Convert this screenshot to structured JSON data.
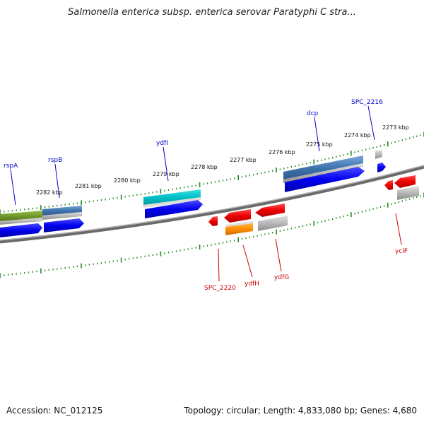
{
  "header": {
    "title": "Salmonella enterica subsp. enterica serovar Paratyphi C stra..."
  },
  "footer": {
    "accession": "Accession: NC_012125",
    "summary": "Topology: circular; Length: 4,833,080 bp; Genes: 4,680"
  },
  "colors": {
    "forward_label": "#0000cc",
    "reverse_label": "#cc0000",
    "ticks": "#228b22",
    "backbone": "#808080"
  },
  "scale_labels": [
    "2282 kbp",
    "2281 kbp",
    "2280 kbp",
    "2279 kbp",
    "2278 kbp",
    "2277 kbp",
    "2276 kbp",
    "2275 kbp",
    "2274 kbp",
    "2273 kbp"
  ],
  "forward_genes": [
    "rspA",
    "rspB",
    "ydfI",
    "dcp",
    "SPC_2216"
  ],
  "reverse_genes": [
    "SPC_2220",
    "ydfH",
    "ydfG",
    "yciF"
  ]
}
